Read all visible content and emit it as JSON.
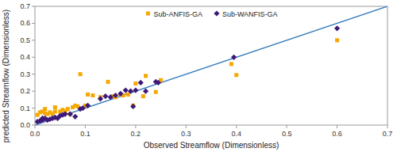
{
  "chart_data": {
    "type": "scatter",
    "xlabel": "Observed Streamflow (Dimensionless)",
    "ylabel": "predicted Streamflow (Dimensionless)",
    "xlim": [
      0,
      0.7
    ],
    "ylim": [
      0,
      0.7
    ],
    "xticks": [
      {
        "value": 0,
        "label": "0.0"
      },
      0.1,
      0.2,
      0.3,
      0.4,
      0.5,
      0.6,
      0.7
    ],
    "yticks": [
      {
        "value": 0,
        "label": "0.0"
      },
      0.1,
      0.2,
      0.3,
      0.4,
      0.5,
      0.6,
      0.7
    ],
    "legend": "upper center",
    "series": [
      {
        "type": "line",
        "color": "#3b7fbf",
        "x": [
          0,
          0.7
        ],
        "values": [
          0,
          0.7
        ]
      },
      {
        "name": "Sub-ANFIS-GA",
        "color": "#f5a800",
        "marker": "square",
        "x": [
          0.005,
          0.01,
          0.015,
          0.02,
          0.02,
          0.025,
          0.03,
          0.035,
          0.04,
          0.04,
          0.05,
          0.055,
          0.06,
          0.065,
          0.07,
          0.075,
          0.08,
          0.085,
          0.09,
          0.1,
          0.105,
          0.115,
          0.13,
          0.145,
          0.155,
          0.16,
          0.17,
          0.175,
          0.185,
          0.195,
          0.2,
          0.215,
          0.22,
          0.24,
          0.25,
          0.39,
          0.4,
          0.6
        ],
        "values": [
          0.06,
          0.075,
          0.08,
          0.07,
          0.095,
          0.065,
          0.075,
          0.065,
          0.08,
          0.105,
          0.08,
          0.09,
          0.08,
          0.095,
          0.065,
          0.105,
          0.115,
          0.11,
          0.3,
          0.115,
          0.18,
          0.175,
          0.165,
          0.255,
          0.17,
          0.165,
          0.18,
          0.175,
          0.18,
          0.115,
          0.245,
          0.17,
          0.29,
          0.195,
          0.265,
          0.36,
          0.295,
          0.5
        ]
      },
      {
        "name": "Sub-WANFIS-GA",
        "color": "#3d1a78",
        "marker": "diamond",
        "x": [
          0.005,
          0.01,
          0.015,
          0.015,
          0.02,
          0.025,
          0.03,
          0.035,
          0.04,
          0.045,
          0.05,
          0.055,
          0.06,
          0.07,
          0.08,
          0.09,
          0.095,
          0.105,
          0.13,
          0.14,
          0.15,
          0.16,
          0.17,
          0.18,
          0.19,
          0.195,
          0.2,
          0.21,
          0.22,
          0.24,
          0.245,
          0.395,
          0.6
        ],
        "values": [
          0.02,
          0.025,
          0.03,
          0.04,
          0.04,
          0.03,
          0.035,
          0.04,
          0.045,
          0.04,
          0.055,
          0.06,
          0.065,
          0.065,
          0.05,
          0.095,
          0.1,
          0.115,
          0.155,
          0.17,
          0.165,
          0.175,
          0.185,
          0.205,
          0.2,
          0.11,
          0.205,
          0.25,
          0.2,
          0.255,
          0.25,
          0.4,
          0.57
        ]
      }
    ]
  }
}
